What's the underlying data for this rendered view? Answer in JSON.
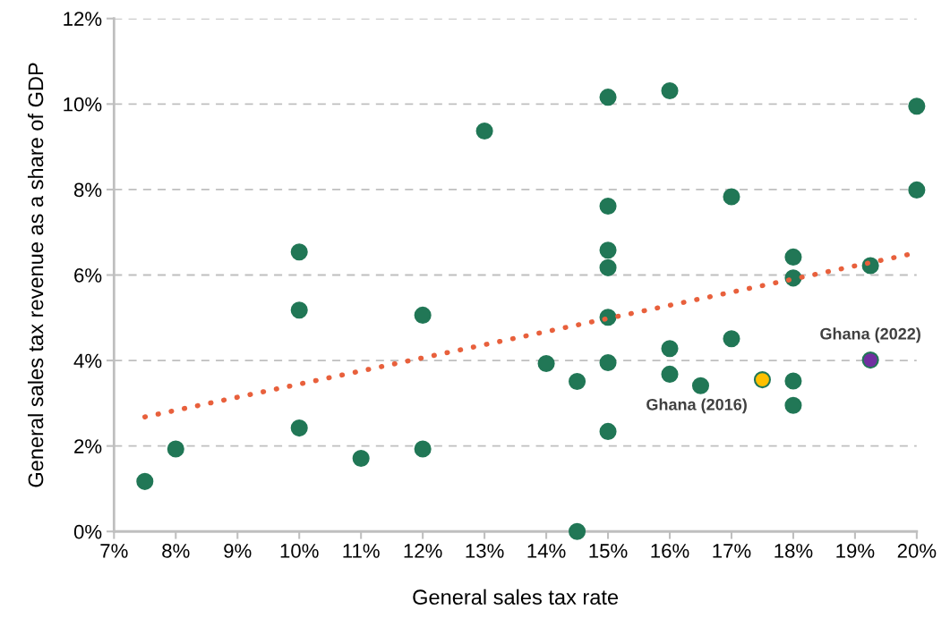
{
  "chart_data": {
    "type": "scatter",
    "xlabel": "General sales tax rate",
    "ylabel": "General sales tax revenue as a share of GDP",
    "series": [
      {
        "marker": "circle",
        "color": "#217756",
        "x": [
          7.5,
          8,
          10,
          10,
          10,
          11,
          12,
          12,
          13,
          14,
          14.5,
          14.5,
          15,
          15,
          15,
          15,
          15,
          15,
          15,
          16,
          16,
          16,
          16.5,
          17,
          17,
          18,
          18,
          18,
          18,
          19.25,
          20,
          20
        ],
        "values": [
          1.17,
          1.93,
          6.54,
          5.18,
          2.42,
          1.71,
          5.06,
          1.93,
          9.37,
          3.93,
          3.51,
          0,
          10.16,
          7.61,
          6.58,
          6.17,
          5.01,
          3.95,
          2.34,
          10.31,
          4.28,
          3.68,
          3.41,
          7.83,
          4.51,
          6.42,
          5.93,
          3.52,
          2.95,
          6.22,
          9.95,
          7.99
        ]
      },
      {
        "marker": "circle",
        "color": "#ffc000",
        "x": [
          17.5
        ],
        "values": [
          3.55
        ]
      },
      {
        "marker": "circle",
        "color": "#7030a0",
        "x": [
          19.25
        ],
        "values": [
          4.01
        ]
      },
      {
        "type": "line",
        "marker": "none",
        "color": "#e8603c",
        "line_style": "dotted",
        "x": [
          7.5,
          20
        ],
        "values": [
          2.68,
          6.52
        ]
      }
    ],
    "annotations": [
      {
        "text": "Ghana (2016)",
        "x": 17.5,
        "y": 3.55
      },
      {
        "text": "Ghana (2022)",
        "x": 19.25,
        "y": 4.01
      }
    ],
    "grid": "y",
    "xlim": [
      7,
      20
    ],
    "xticks": [
      {
        "value": 7,
        "label": "7%"
      },
      {
        "value": 8,
        "label": "8%"
      },
      {
        "value": 9,
        "label": "9%"
      },
      {
        "value": 10,
        "label": "10%"
      },
      {
        "value": 11,
        "label": "11%"
      },
      {
        "value": 12,
        "label": "12%"
      },
      {
        "value": 13,
        "label": "13%"
      },
      {
        "value": 14,
        "label": "14%"
      },
      {
        "value": 15,
        "label": "15%"
      },
      {
        "value": 16,
        "label": "16%"
      },
      {
        "value": 17,
        "label": "17%"
      },
      {
        "value": 18,
        "label": "18%"
      },
      {
        "value": 19,
        "label": "19%"
      },
      {
        "value": 20,
        "label": "20%"
      }
    ],
    "ylim": [
      0,
      12
    ],
    "yticks": [
      {
        "value": 0,
        "label": "0%"
      },
      {
        "value": 2,
        "label": "2%"
      },
      {
        "value": 4,
        "label": "4%"
      },
      {
        "value": 6,
        "label": "6%"
      },
      {
        "value": 8,
        "label": "8%"
      },
      {
        "value": 10,
        "label": "10%"
      },
      {
        "value": 12,
        "label": "12%"
      }
    ]
  }
}
